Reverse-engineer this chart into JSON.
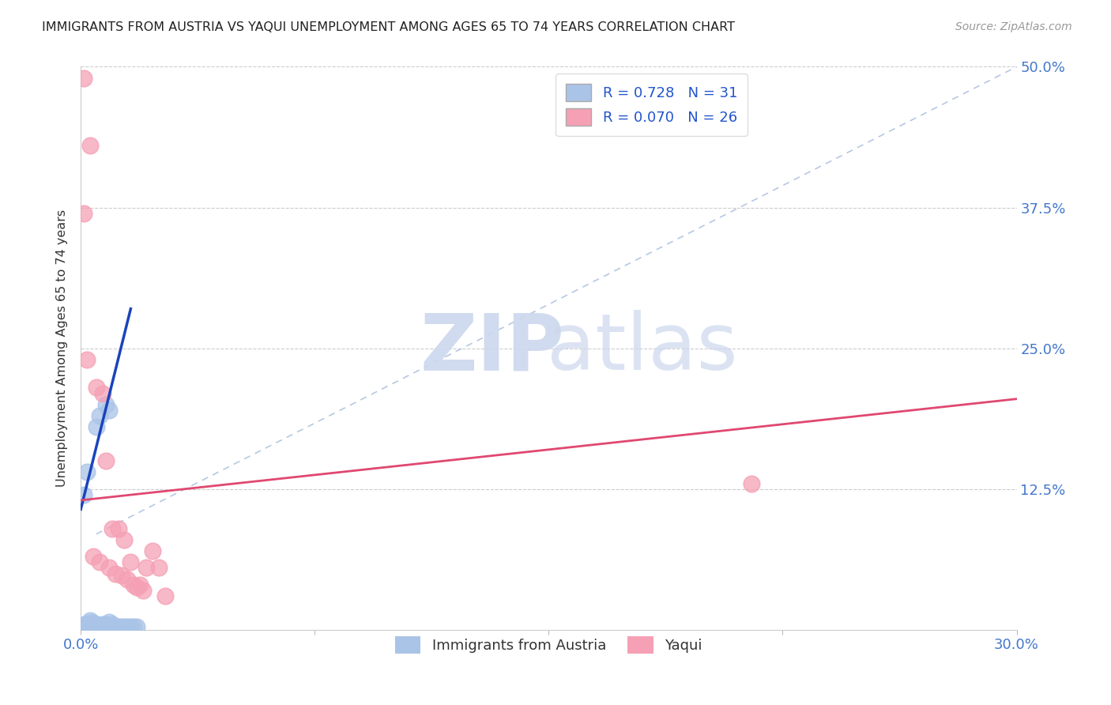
{
  "title": "IMMIGRANTS FROM AUSTRIA VS YAQUI UNEMPLOYMENT AMONG AGES 65 TO 74 YEARS CORRELATION CHART",
  "source": "Source: ZipAtlas.com",
  "ylabel": "Unemployment Among Ages 65 to 74 years",
  "xlim": [
    0.0,
    0.3
  ],
  "ylim": [
    0.0,
    0.5
  ],
  "xtick_positions": [
    0.0,
    0.075,
    0.15,
    0.225,
    0.3
  ],
  "xtick_labels": [
    "0.0%",
    "",
    "",
    "",
    "30.0%"
  ],
  "ytick_positions": [
    0.0,
    0.125,
    0.25,
    0.375,
    0.5
  ],
  "ytick_labels_right": [
    "",
    "12.5%",
    "25.0%",
    "37.5%",
    "50.0%"
  ],
  "legend_r1": "R = 0.728",
  "legend_n1": "N = 31",
  "legend_r2": "R = 0.070",
  "legend_n2": "N = 26",
  "legend_label1": "Immigrants from Austria",
  "legend_label2": "Yaqui",
  "blue_color": "#aac4e8",
  "pink_color": "#f5a0b5",
  "blue_line_color": "#1a44bb",
  "pink_line_color": "#e04870",
  "dashed_line_color": "#aabedd",
  "blue_scatter_x": [
    0.001,
    0.001,
    0.002,
    0.002,
    0.003,
    0.003,
    0.003,
    0.004,
    0.004,
    0.005,
    0.005,
    0.005,
    0.006,
    0.006,
    0.007,
    0.007,
    0.008,
    0.008,
    0.009,
    0.009,
    0.01,
    0.01,
    0.011,
    0.012,
    0.013,
    0.014,
    0.015,
    0.016,
    0.017,
    0.018,
    0.002
  ],
  "blue_scatter_y": [
    0.005,
    0.12,
    0.005,
    0.14,
    0.003,
    0.006,
    0.008,
    0.003,
    0.006,
    0.004,
    0.005,
    0.18,
    0.004,
    0.19,
    0.005,
    0.003,
    0.005,
    0.2,
    0.007,
    0.195,
    0.005,
    0.003,
    0.003,
    0.003,
    0.003,
    0.003,
    0.003,
    0.003,
    0.003,
    0.003,
    0.003
  ],
  "pink_scatter_x": [
    0.001,
    0.001,
    0.002,
    0.003,
    0.004,
    0.005,
    0.006,
    0.007,
    0.008,
    0.009,
    0.01,
    0.011,
    0.012,
    0.013,
    0.014,
    0.015,
    0.016,
    0.017,
    0.018,
    0.019,
    0.02,
    0.021,
    0.023,
    0.025,
    0.027,
    0.215
  ],
  "pink_scatter_y": [
    0.37,
    0.49,
    0.24,
    0.43,
    0.065,
    0.215,
    0.06,
    0.21,
    0.15,
    0.055,
    0.09,
    0.05,
    0.09,
    0.048,
    0.08,
    0.045,
    0.06,
    0.04,
    0.038,
    0.04,
    0.035,
    0.055,
    0.07,
    0.055,
    0.03,
    0.13
  ],
  "blue_line_x": [
    0.0,
    0.016
  ],
  "blue_line_y": [
    0.107,
    0.285
  ],
  "pink_line_x": [
    0.0,
    0.3
  ],
  "pink_line_y": [
    0.115,
    0.205
  ],
  "dash_line_x": [
    0.005,
    0.3
  ],
  "dash_line_y": [
    0.085,
    0.5
  ]
}
